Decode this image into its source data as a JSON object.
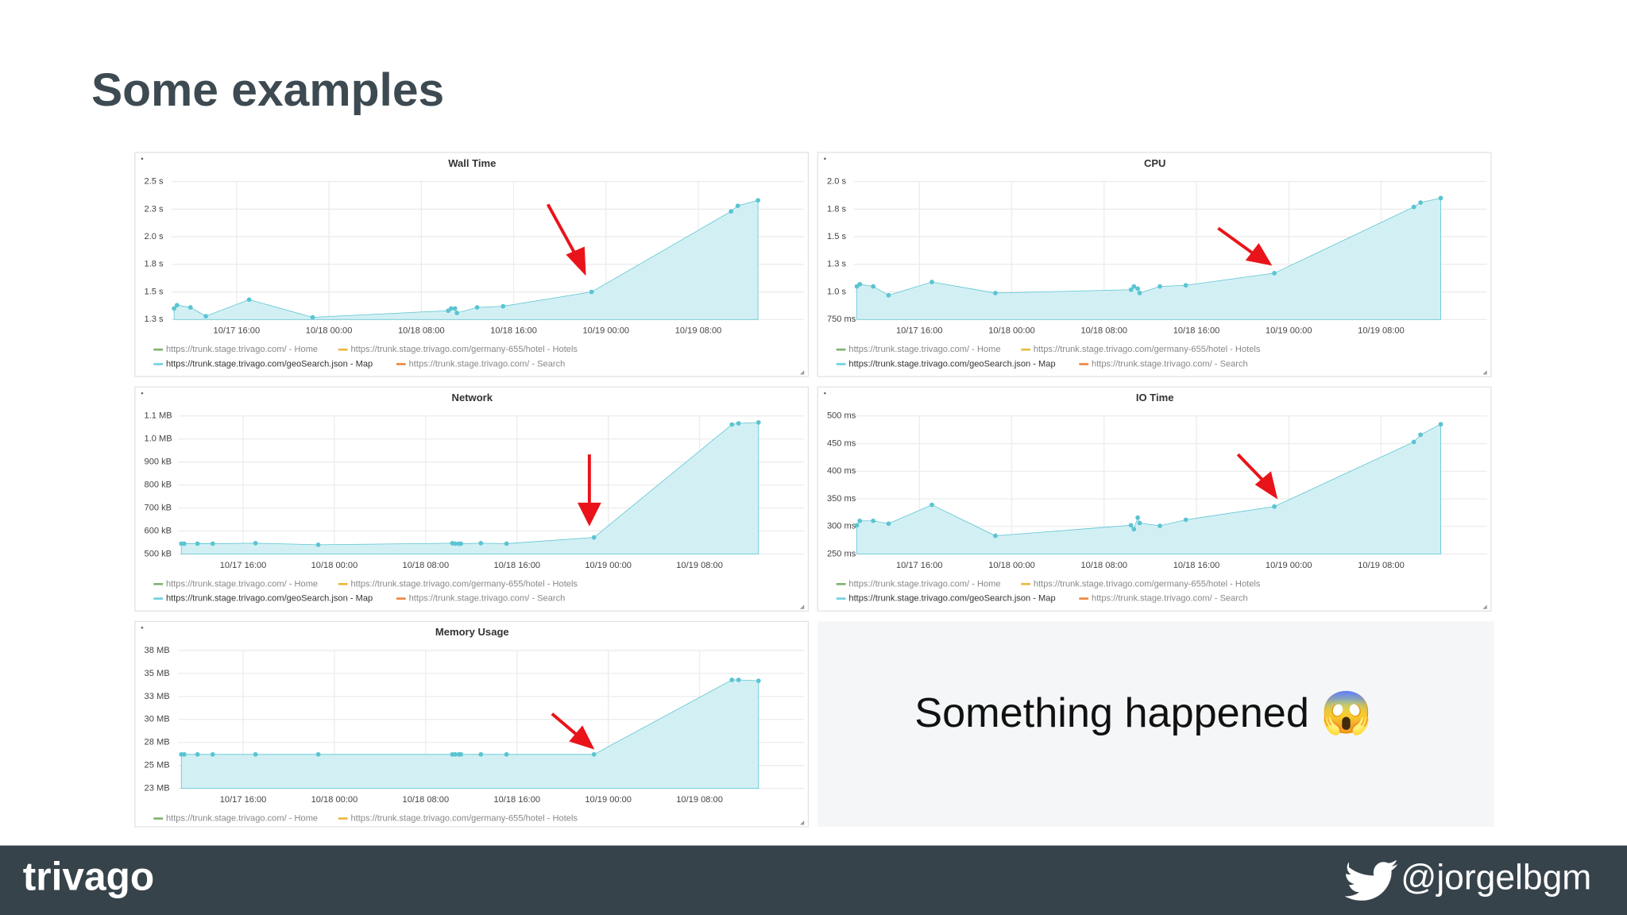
{
  "slide": {
    "title": "Some examples",
    "caption": "Something happened 😱",
    "brand": "trivago",
    "handle": "@jorgelbgm"
  },
  "chart_data": [
    {
      "type": "area",
      "title": "Wall Time",
      "color": "#5bc4d1",
      "fill": "#d2f0f4",
      "grid": true,
      "legend": [
        {
          "name": "https://trunk.stage.trivago.com/ - Home",
          "color": "#7eb26d"
        },
        {
          "name": "https://trunk.stage.trivago.com/germany-655/hotel - Hotels",
          "color": "#eab839"
        },
        {
          "name": "https://trunk.stage.trivago.com/geoSearch.json - Map",
          "color": "#6ed0e0"
        },
        {
          "name": "https://trunk.stage.trivago.com/ - Search",
          "color": "#ef843c"
        }
      ],
      "x": [
        "10/17 10:35",
        "10/17 10:50",
        "10/17 12:00",
        "10/17 13:20",
        "10/17 17:05",
        "10/17 22:35",
        "10/18 10:20",
        "10/18 10:35",
        "10/18 10:55",
        "10/18 11:05",
        "10/18 12:50",
        "10/18 15:05",
        "10/18 22:45",
        "10/19 10:50",
        "10/19 11:25",
        "10/19 13:10"
      ],
      "values": [
        1.35,
        1.38,
        1.36,
        1.28,
        1.43,
        1.27,
        1.33,
        1.35,
        1.35,
        1.31,
        1.36,
        1.37,
        1.5,
        2.23,
        2.28,
        2.33
      ],
      "xlim": [
        "10/17 10:20",
        "10/19 17:10"
      ],
      "xticks": [
        "10/17 16:00",
        "10/18 00:00",
        "10/18 08:00",
        "10/18 16:00",
        "10/19 00:00",
        "10/19 08:00"
      ],
      "ylim": [
        1.25,
        2.5
      ],
      "yticks": [
        {
          "value": 2.5,
          "label": "2.5 s"
        },
        {
          "value": 2.25,
          "label": "2.3 s"
        },
        {
          "value": 2.0,
          "label": "2.0 s"
        },
        {
          "value": 1.75,
          "label": "1.8 s"
        },
        {
          "value": 1.5,
          "label": "1.5 s"
        },
        {
          "value": 1.25,
          "label": "1.3 s"
        }
      ]
    },
    {
      "type": "area",
      "title": "CPU",
      "color": "#5bc4d1",
      "fill": "#d2f0f4",
      "grid": true,
      "legend": [
        {
          "name": "https://trunk.stage.trivago.com/ - Home",
          "color": "#7eb26d"
        },
        {
          "name": "https://trunk.stage.trivago.com/germany-655/hotel - Hotels",
          "color": "#eab839"
        },
        {
          "name": "https://trunk.stage.trivago.com/geoSearch.json - Map",
          "color": "#6ed0e0"
        },
        {
          "name": "https://trunk.stage.trivago.com/ - Search",
          "color": "#ef843c"
        }
      ],
      "x": [
        "10/17 10:35",
        "10/17 10:50",
        "10/17 12:00",
        "10/17 13:20",
        "10/17 17:05",
        "10/17 22:35",
        "10/18 10:20",
        "10/18 10:35",
        "10/18 10:55",
        "10/18 11:05",
        "10/18 12:50",
        "10/18 15:05",
        "10/18 22:45",
        "10/19 10:50",
        "10/19 11:25",
        "10/19 13:10"
      ],
      "values": [
        1.05,
        1.07,
        1.05,
        0.97,
        1.09,
        0.99,
        1.02,
        1.05,
        1.03,
        0.99,
        1.05,
        1.06,
        1.17,
        1.77,
        1.81,
        1.85
      ],
      "xlim": [
        "10/17 10:20",
        "10/19 17:10"
      ],
      "xticks": [
        "10/17 16:00",
        "10/18 00:00",
        "10/18 08:00",
        "10/18 16:00",
        "10/19 00:00",
        "10/19 08:00"
      ],
      "ylim": [
        0.75,
        2.0
      ],
      "yticks": [
        {
          "value": 2.0,
          "label": "2.0 s"
        },
        {
          "value": 1.75,
          "label": "1.8 s"
        },
        {
          "value": 1.5,
          "label": "1.5 s"
        },
        {
          "value": 1.25,
          "label": "1.3 s"
        },
        {
          "value": 1.0,
          "label": "1.0 s"
        },
        {
          "value": 0.75,
          "label": "750 ms"
        }
      ]
    },
    {
      "type": "area",
      "title": "Network",
      "color": "#5bc4d1",
      "fill": "#d2f0f4",
      "grid": true,
      "legend": [
        {
          "name": "https://trunk.stage.trivago.com/ - Home",
          "color": "#7eb26d"
        },
        {
          "name": "https://trunk.stage.trivago.com/germany-655/hotel - Hotels",
          "color": "#eab839"
        },
        {
          "name": "https://trunk.stage.trivago.com/geoSearch.json - Map",
          "color": "#6ed0e0"
        },
        {
          "name": "https://trunk.stage.trivago.com/ - Search",
          "color": "#ef843c"
        }
      ],
      "x": [
        "10/17 10:35",
        "10/17 10:50",
        "10/17 12:00",
        "10/17 13:20",
        "10/17 17:05",
        "10/17 22:35",
        "10/18 10:20",
        "10/18 10:35",
        "10/18 10:55",
        "10/18 11:05",
        "10/18 12:50",
        "10/18 15:05",
        "10/18 22:45",
        "10/19 10:50",
        "10/19 11:25",
        "10/19 13:10"
      ],
      "values": [
        545,
        545,
        545,
        545,
        547,
        540,
        547,
        545,
        545,
        545,
        547,
        545,
        572,
        1063,
        1068,
        1072
      ],
      "xlim": [
        "10/17 10:20",
        "10/19 17:10"
      ],
      "xticks": [
        "10/17 16:00",
        "10/18 00:00",
        "10/18 08:00",
        "10/18 16:00",
        "10/19 00:00",
        "10/19 08:00"
      ],
      "ylim": [
        500,
        1100
      ],
      "yticks": [
        {
          "value": 1100,
          "label": "1.1 MB"
        },
        {
          "value": 1000,
          "label": "1.0 MB"
        },
        {
          "value": 900,
          "label": "900 kB"
        },
        {
          "value": 800,
          "label": "800 kB"
        },
        {
          "value": 700,
          "label": "700 kB"
        },
        {
          "value": 600,
          "label": "600 kB"
        },
        {
          "value": 500,
          "label": "500 kB"
        }
      ]
    },
    {
      "type": "area",
      "title": "IO Time",
      "color": "#5bc4d1",
      "fill": "#d2f0f4",
      "grid": true,
      "legend": [
        {
          "name": "https://trunk.stage.trivago.com/ - Home",
          "color": "#7eb26d"
        },
        {
          "name": "https://trunk.stage.trivago.com/germany-655/hotel - Hotels",
          "color": "#eab839"
        },
        {
          "name": "https://trunk.stage.trivago.com/geoSearch.json - Map",
          "color": "#6ed0e0"
        },
        {
          "name": "https://trunk.stage.trivago.com/ - Search",
          "color": "#ef843c"
        }
      ],
      "x": [
        "10/17 10:35",
        "10/17 10:50",
        "10/17 12:00",
        "10/17 13:20",
        "10/17 17:05",
        "10/17 22:35",
        "10/18 10:20",
        "10/18 10:35",
        "10/18 10:55",
        "10/18 11:05",
        "10/18 12:50",
        "10/18 15:05",
        "10/18 22:45",
        "10/19 10:50",
        "10/19 11:25",
        "10/19 13:10"
      ],
      "values": [
        302,
        310,
        310,
        305,
        339,
        283,
        302,
        295,
        316,
        306,
        301,
        312,
        336,
        453,
        466,
        485
      ],
      "xlim": [
        "10/17 10:20",
        "10/19 17:10"
      ],
      "xticks": [
        "10/17 16:00",
        "10/18 00:00",
        "10/18 08:00",
        "10/18 16:00",
        "10/19 00:00",
        "10/19 08:00"
      ],
      "ylim": [
        250,
        500
      ],
      "yticks": [
        {
          "value": 500,
          "label": "500 ms"
        },
        {
          "value": 450,
          "label": "450 ms"
        },
        {
          "value": 400,
          "label": "400 ms"
        },
        {
          "value": 350,
          "label": "350 ms"
        },
        {
          "value": 300,
          "label": "300 ms"
        },
        {
          "value": 250,
          "label": "250 ms"
        }
      ]
    },
    {
      "type": "area",
      "title": "Memory Usage",
      "color": "#5bc4d1",
      "fill": "#d2f0f4",
      "grid": true,
      "legend": [
        {
          "name": "https://trunk.stage.trivago.com/ - Home",
          "color": "#7eb26d"
        },
        {
          "name": "https://trunk.stage.trivago.com/germany-655/hotel - Hotels",
          "color": "#eab839"
        }
      ],
      "x": [
        "10/17 10:35",
        "10/17 10:50",
        "10/17 12:00",
        "10/17 13:20",
        "10/17 17:05",
        "10/17 22:35",
        "10/18 10:20",
        "10/18 10:35",
        "10/18 10:55",
        "10/18 11:05",
        "10/18 12:50",
        "10/18 15:05",
        "10/18 22:45",
        "10/19 10:50",
        "10/19 11:25",
        "10/19 13:10"
      ],
      "values": [
        26.2,
        26.2,
        26.2,
        26.2,
        26.2,
        26.2,
        26.2,
        26.2,
        26.2,
        26.2,
        26.2,
        26.2,
        26.2,
        34.3,
        34.3,
        34.2
      ],
      "xlim": [
        "10/17 10:20",
        "10/19 17:10"
      ],
      "xticks": [
        "10/17 16:00",
        "10/18 00:00",
        "10/18 08:00",
        "10/18 16:00",
        "10/19 00:00",
        "10/19 08:00"
      ],
      "ylim": [
        22.5,
        37.5
      ],
      "yticks": [
        {
          "value": 37.5,
          "label": "38 MB"
        },
        {
          "value": 35,
          "label": "35 MB"
        },
        {
          "value": 32.5,
          "label": "33 MB"
        },
        {
          "value": 30,
          "label": "30 MB"
        },
        {
          "value": 27.5,
          "label": "28 MB"
        },
        {
          "value": 25,
          "label": "25 MB"
        },
        {
          "value": 22.5,
          "label": "23 MB"
        }
      ]
    }
  ]
}
